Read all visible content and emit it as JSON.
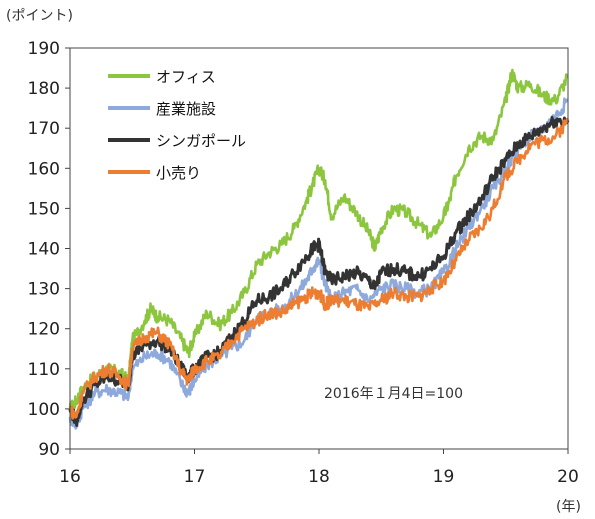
{
  "chart_data": {
    "type": "line",
    "title": "",
    "ylabel": "(ポイント)",
    "xlabel": "(年)",
    "ylim": [
      90,
      190
    ],
    "xlim": [
      16,
      20
    ],
    "y_ticks": [
      "90",
      "100",
      "110",
      "120",
      "130",
      "140",
      "150",
      "160",
      "170",
      "180",
      "190"
    ],
    "x_ticks": [
      "16",
      "17",
      "18",
      "19",
      "20"
    ],
    "grid": false,
    "legend_position": "top-left",
    "annotation": "2016年１月4日=100",
    "series": [
      {
        "name": "オフィス",
        "color": "#8cc63f",
        "x": [
          16.0,
          16.05,
          16.1,
          16.2,
          16.3,
          16.4,
          16.47,
          16.5,
          16.6,
          16.65,
          16.7,
          16.8,
          16.9,
          16.95,
          17.0,
          17.1,
          17.2,
          17.3,
          17.4,
          17.5,
          17.6,
          17.7,
          17.8,
          17.9,
          17.95,
          18.0,
          18.05,
          18.1,
          18.2,
          18.3,
          18.4,
          18.45,
          18.5,
          18.6,
          18.7,
          18.8,
          18.9,
          19.0,
          19.05,
          19.1,
          19.2,
          19.3,
          19.4,
          19.5,
          19.55,
          19.6,
          19.7,
          19.8,
          19.9,
          20.0
        ],
        "y": [
          100,
          102,
          105,
          108,
          110,
          109,
          107,
          117,
          122,
          125,
          123,
          122,
          117,
          114,
          118,
          124,
          121,
          124,
          129,
          136,
          139,
          141,
          145,
          152,
          156,
          160,
          157,
          148,
          153,
          149,
          144,
          140,
          145,
          150,
          149,
          146,
          143,
          148,
          152,
          158,
          165,
          168,
          167,
          177,
          184,
          180,
          181,
          178,
          177,
          183
        ]
      },
      {
        "name": "産業施設",
        "color": "#8ea9db",
        "x": [
          16.0,
          16.05,
          16.1,
          16.2,
          16.3,
          16.4,
          16.47,
          16.5,
          16.6,
          16.7,
          16.8,
          16.9,
          16.95,
          17.0,
          17.1,
          17.2,
          17.3,
          17.4,
          17.5,
          17.6,
          17.7,
          17.8,
          17.9,
          17.95,
          18.0,
          18.05,
          18.1,
          18.2,
          18.3,
          18.4,
          18.5,
          18.6,
          18.7,
          18.8,
          18.9,
          19.0,
          19.1,
          19.2,
          19.3,
          19.4,
          19.5,
          19.6,
          19.7,
          19.8,
          19.9,
          20.0
        ],
        "y": [
          98,
          96,
          100,
          104,
          105,
          104,
          103,
          110,
          113,
          114,
          112,
          106,
          104,
          107,
          111,
          113,
          115,
          117,
          123,
          124,
          125,
          128,
          132,
          135,
          137,
          131,
          127,
          129,
          130,
          127,
          130,
          131,
          130,
          129,
          130,
          134,
          140,
          145,
          150,
          155,
          160,
          165,
          168,
          170,
          173,
          177
        ]
      },
      {
        "name": "シンガポール",
        "color": "#333333",
        "x": [
          16.0,
          16.05,
          16.1,
          16.2,
          16.3,
          16.4,
          16.47,
          16.5,
          16.6,
          16.7,
          16.8,
          16.9,
          16.95,
          17.0,
          17.1,
          17.2,
          17.3,
          17.4,
          17.5,
          17.6,
          17.7,
          17.8,
          17.9,
          17.95,
          18.0,
          18.05,
          18.1,
          18.2,
          18.3,
          18.4,
          18.45,
          18.5,
          18.6,
          18.7,
          18.8,
          18.9,
          19.0,
          19.1,
          19.2,
          19.3,
          19.4,
          19.5,
          19.6,
          19.7,
          19.8,
          19.9,
          20.0
        ],
        "y": [
          100,
          97,
          102,
          106,
          108,
          107,
          106,
          113,
          116,
          117,
          115,
          110,
          108,
          110,
          113,
          114,
          118,
          122,
          127,
          128,
          130,
          134,
          138,
          140,
          141,
          134,
          132,
          133,
          134,
          132,
          130,
          134,
          135,
          134,
          133,
          135,
          138,
          144,
          148,
          152,
          158,
          162,
          166,
          168,
          170,
          172,
          172
        ]
      },
      {
        "name": "小売り",
        "color": "#ed7d31",
        "x": [
          16.0,
          16.05,
          16.1,
          16.2,
          16.3,
          16.4,
          16.47,
          16.5,
          16.6,
          16.7,
          16.8,
          16.9,
          16.95,
          17.0,
          17.1,
          17.2,
          17.3,
          17.4,
          17.5,
          17.6,
          17.7,
          17.8,
          17.9,
          17.95,
          18.0,
          18.05,
          18.1,
          18.2,
          18.3,
          18.4,
          18.5,
          18.6,
          18.7,
          18.8,
          18.9,
          19.0,
          19.1,
          19.2,
          19.3,
          19.4,
          19.5,
          19.6,
          19.7,
          19.8,
          19.9,
          20.0
        ],
        "y": [
          100,
          98,
          104,
          108,
          110,
          108,
          106,
          115,
          118,
          119,
          116,
          109,
          107,
          110,
          112,
          113,
          117,
          120,
          122,
          124,
          124,
          126,
          128,
          129,
          129,
          126,
          127,
          127,
          126,
          125,
          127,
          129,
          128,
          128,
          130,
          132,
          137,
          142,
          145,
          150,
          158,
          162,
          166,
          167,
          168,
          172
        ]
      }
    ]
  }
}
